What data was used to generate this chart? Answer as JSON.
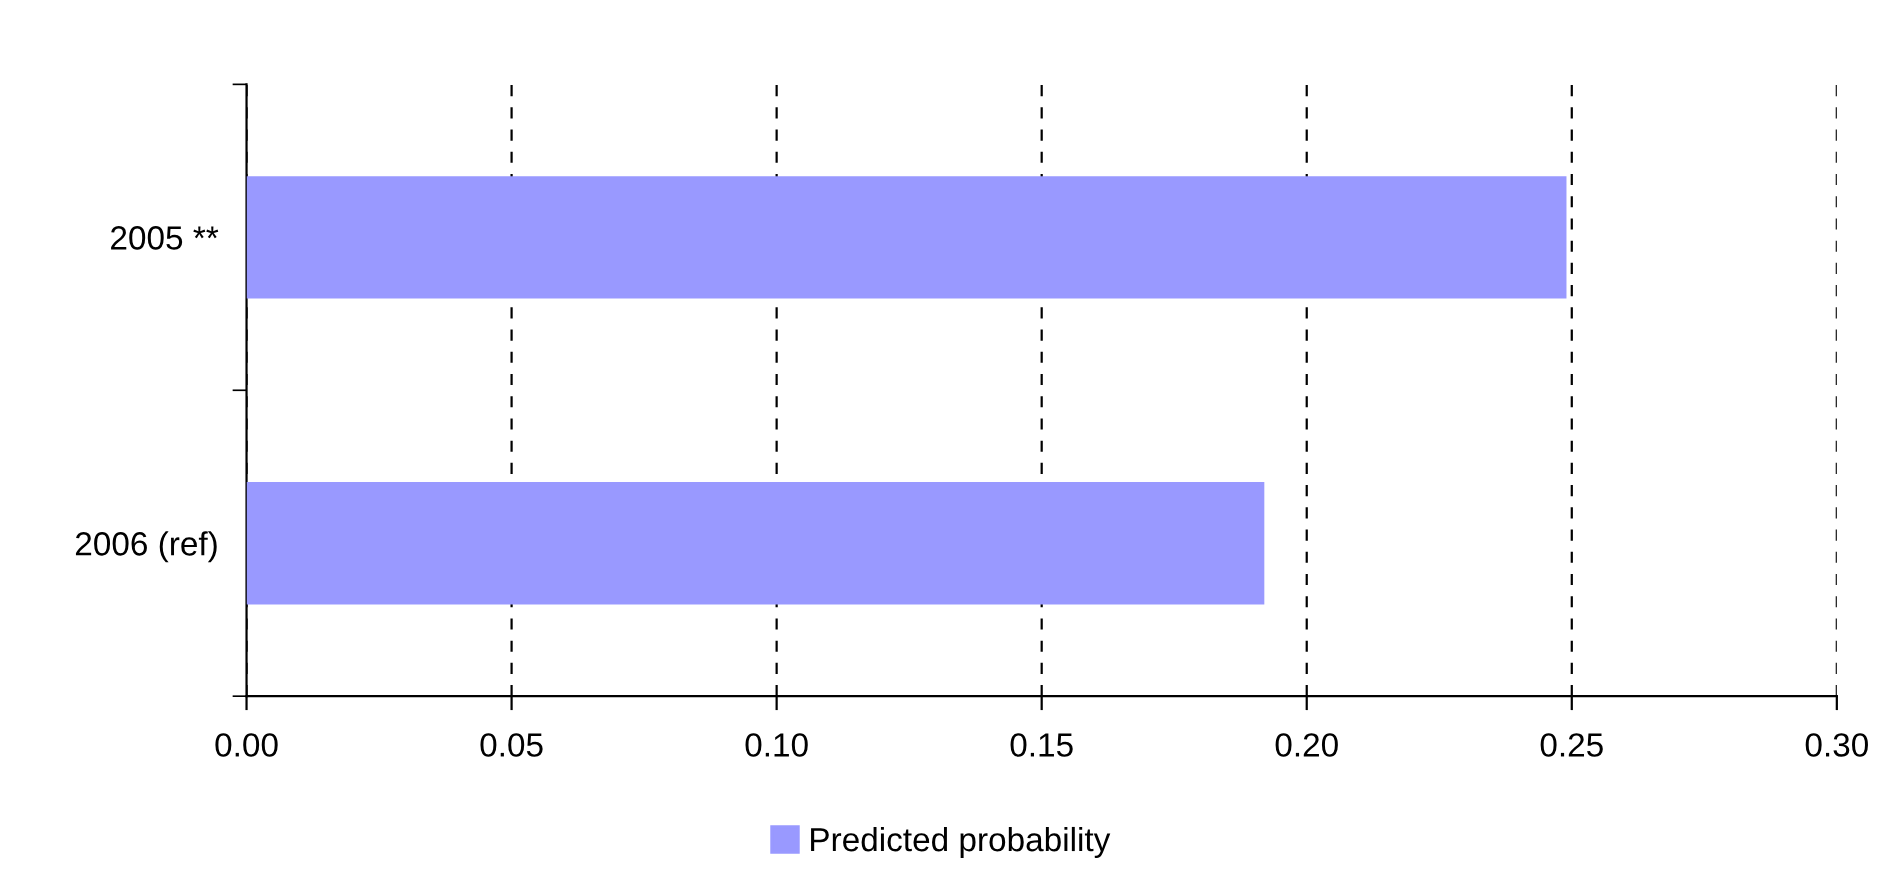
{
  "chart_data": {
    "type": "bar",
    "orientation": "horizontal",
    "categories": [
      "2005 **",
      "2006 (ref)"
    ],
    "series": [
      {
        "name": "Predicted probability",
        "color": "#9999ff",
        "values": [
          0.249,
          0.192
        ]
      }
    ],
    "xlim": [
      0,
      0.3
    ],
    "xticks": [
      {
        "value": 0,
        "label": "0.00"
      },
      {
        "value": 0.05,
        "label": "0.05"
      },
      {
        "value": 0.1,
        "label": "0.10"
      },
      {
        "value": 0.15,
        "label": "0.15"
      },
      {
        "value": 0.2,
        "label": "0.20"
      },
      {
        "value": 0.25,
        "label": "0.25"
      },
      {
        "value": 0.3,
        "label": "0.30"
      }
    ],
    "grid": "x",
    "legend": "bottom"
  }
}
